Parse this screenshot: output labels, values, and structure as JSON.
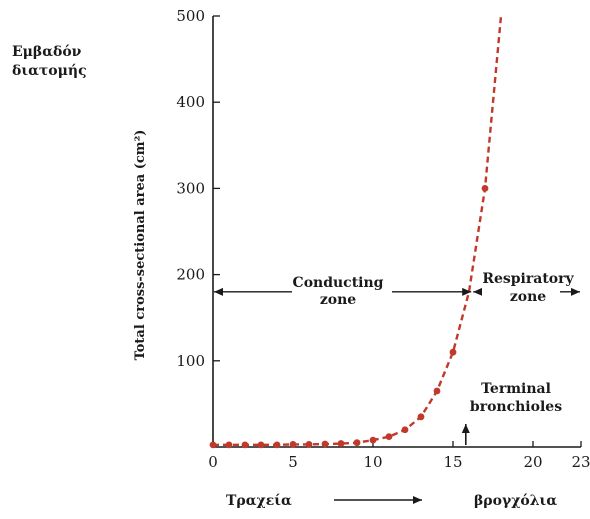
{
  "y_label_greek": [
    "Εμβαδόν",
    "διατομής"
  ],
  "bottom": {
    "left": "Τραχεία",
    "right": "βρογχόλια"
  },
  "chart_data": {
    "type": "line",
    "ylabel": "Total cross-sectional area (cm²)",
    "xlabel": "",
    "xlim": [
      0,
      23
    ],
    "ylim": [
      0,
      500
    ],
    "x_ticks": [
      {
        "value": 0,
        "label": "0"
      },
      {
        "value": 5,
        "label": "5"
      },
      {
        "value": 10,
        "label": "10"
      },
      {
        "value": 15,
        "label": "15"
      },
      {
        "value": 20,
        "label": "20"
      },
      {
        "value": 23,
        "label": "23"
      }
    ],
    "y_ticks": [
      {
        "value": 100,
        "label": "100"
      },
      {
        "value": 200,
        "label": "200"
      },
      {
        "value": 300,
        "label": "300"
      },
      {
        "value": 400,
        "label": "400"
      },
      {
        "value": 500,
        "label": "500"
      }
    ],
    "series": [
      {
        "color": "#c0392b",
        "line_style": "dashed",
        "x": [
          0,
          1,
          2,
          3,
          4,
          5,
          6,
          7,
          8,
          9,
          10,
          11,
          12,
          13,
          14,
          15,
          16,
          17,
          18
        ],
        "y": [
          2.5,
          2.5,
          2.5,
          2.5,
          2.5,
          3,
          3,
          3.5,
          4,
          5,
          8,
          12,
          20,
          35,
          65,
          110,
          180,
          300,
          500
        ]
      }
    ],
    "markers": {
      "x": [
        0,
        1,
        2,
        3,
        4,
        5,
        6,
        7,
        8,
        9,
        10,
        11,
        12,
        13,
        14,
        15,
        17
      ],
      "y": [
        2.5,
        2.5,
        2.5,
        2.5,
        2.5,
        3,
        3,
        3.5,
        4,
        5,
        8,
        12,
        20,
        35,
        65,
        110,
        300
      ]
    },
    "annotations": {
      "conducting": {
        "line1": "Conducting",
        "line2": "zone"
      },
      "respiratory": {
        "line1": "Respiratory",
        "line2": "zone"
      },
      "terminal": {
        "line1": "Terminal",
        "line2": "bronchioles"
      },
      "zone_boundary_x": 16.2,
      "zone_arrow_y": 180,
      "terminal_x": 15.8
    }
  }
}
